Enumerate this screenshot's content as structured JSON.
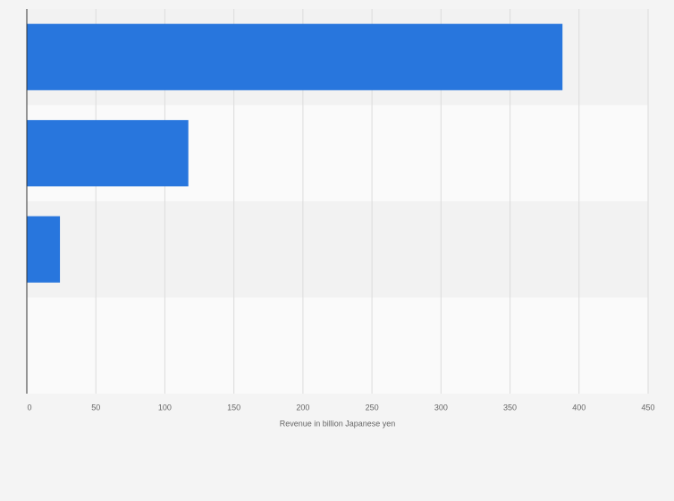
{
  "chart_data": {
    "type": "bar",
    "orientation": "horizontal",
    "x_label": "Revenue in billion Japanese yen",
    "categories": [
      null,
      null,
      null,
      null
    ],
    "values": [
      388,
      117,
      24,
      null
    ],
    "color": "#2876dd",
    "xlim": [
      0,
      450
    ],
    "xticks": [
      0,
      50,
      100,
      150,
      200,
      250,
      300,
      350,
      400,
      450
    ],
    "grid": true
  }
}
